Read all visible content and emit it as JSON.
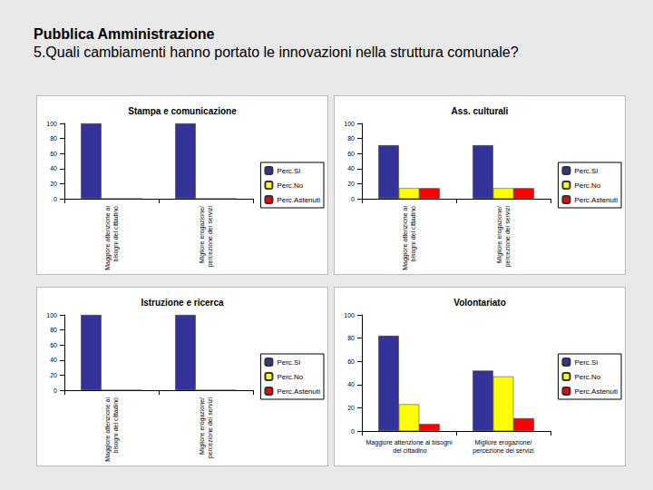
{
  "page_title": "Pubblica Amministrazione",
  "question": "5.Quali cambiamenti hanno portato le innovazioni nella struttura comunale?",
  "chart_data": [
    {
      "type": "bar",
      "title": "Stampa e comunicazione",
      "categories": [
        "Maggiore attenzione ai bisogni del cittadino",
        "Migliore erogazione/percezione dei servizi"
      ],
      "series": [
        {
          "name": "Perc.Si",
          "color": "#333399",
          "values": [
            100,
            100
          ]
        },
        {
          "name": "Perc.No",
          "color": "#ffff00",
          "values": [
            0,
            0
          ]
        },
        {
          "name": "Perc.Astenuti",
          "color": "#ff0000",
          "values": [
            0,
            0
          ]
        }
      ],
      "ylim": [
        0,
        100
      ],
      "yticks": [
        0,
        20,
        40,
        60,
        80,
        100
      ],
      "grid": false,
      "legend": "right"
    },
    {
      "type": "bar",
      "title": "Ass. culturali",
      "categories": [
        "Maggiore attenzione ai bisogni del cittadino",
        "Migliore erogazione/percezione dei servizi"
      ],
      "series": [
        {
          "name": "Perc.Si",
          "color": "#333399",
          "values": [
            71,
            71
          ]
        },
        {
          "name": "Perc.No",
          "color": "#ffff00",
          "values": [
            14,
            14
          ]
        },
        {
          "name": "Perc.Astenuti",
          "color": "#ff0000",
          "values": [
            14,
            14
          ]
        }
      ],
      "ylim": [
        0,
        100
      ],
      "yticks": [
        0,
        20,
        40,
        60,
        80,
        100
      ],
      "grid": false,
      "legend": "right"
    },
    {
      "type": "bar",
      "title": "Istruzione e ricerca",
      "categories": [
        "Maggiore attenzione ai bisogni del cittadino",
        "Migliore erogazione/percezione dei servizi"
      ],
      "series": [
        {
          "name": "Perc.Si",
          "color": "#333399",
          "values": [
            100,
            100
          ]
        },
        {
          "name": "Perc.No",
          "color": "#ffff00",
          "values": [
            0,
            0
          ]
        },
        {
          "name": "Perc.Astenuti",
          "color": "#ff0000",
          "values": [
            0,
            0
          ]
        }
      ],
      "ylim": [
        0,
        100
      ],
      "yticks": [
        0,
        20,
        40,
        60,
        80,
        100
      ],
      "grid": false,
      "legend": "right"
    },
    {
      "type": "bar",
      "title": "Volontariato",
      "categories": [
        "Maggiore attenzione ai bisogni del cittadino",
        "Migliore erogazione/percezione dei servizi"
      ],
      "series": [
        {
          "name": "Perc.Si",
          "color": "#333399",
          "values": [
            82,
            52
          ]
        },
        {
          "name": "Perc.No",
          "color": "#ffff00",
          "values": [
            23,
            47
          ]
        },
        {
          "name": "Perc.Astenuti",
          "color": "#ff0000",
          "values": [
            6,
            11
          ]
        }
      ],
      "ylim": [
        0,
        100
      ],
      "yticks": [
        0,
        20,
        40,
        60,
        80,
        100
      ],
      "grid": false,
      "legend": "right"
    }
  ]
}
